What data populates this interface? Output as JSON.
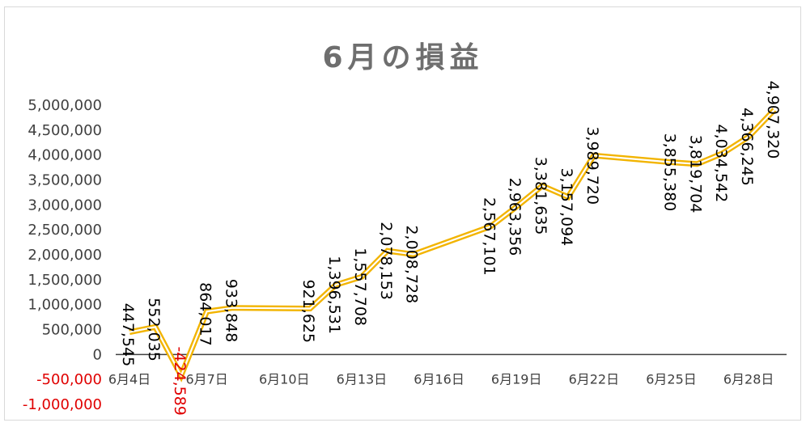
{
  "chart_data": {
    "type": "line",
    "title": "6月の損益",
    "xlabel": "",
    "ylabel": "",
    "x": [
      "6月4日",
      "6月5日",
      "6月6日",
      "6月7日",
      "6月8日",
      "6月11日",
      "6月12日",
      "6月13日",
      "6月14日",
      "6月15日",
      "6月18日",
      "6月19日",
      "6月20日",
      "6月21日",
      "6月22日",
      "6月25日",
      "6月26日",
      "6月27日",
      "6月28日",
      "6月29日"
    ],
    "series": [
      {
        "values": [
          447545,
          552035,
          -424589,
          864017,
          933848,
          921625,
          1396531,
          1557708,
          2078153,
          2008728,
          2567101,
          2963356,
          3381635,
          3157094,
          3989720,
          3855380,
          3819704,
          4034542,
          4366245,
          4907320
        ],
        "labels": [
          "447,545",
          "552,035",
          "-424,589",
          "864,017",
          "933,848",
          "921,625",
          "1,396,531",
          "1,557,708",
          "2,078,153",
          "2,008,728",
          "2,567,101",
          "2,963,356",
          "3,381,635",
          "3,157,094",
          "3,989,720",
          "3,855,380",
          "3,819,704",
          "4,034,542",
          "4,366,245",
          "4,907,320"
        ]
      }
    ],
    "ylim": [
      -1000000,
      5000000
    ],
    "y_ticks": [
      "5,000,000",
      "4,500,000",
      "4,000,000",
      "3,500,000",
      "3,000,000",
      "2,500,000",
      "2,000,000",
      "1,500,000",
      "1,000,000",
      "500,000",
      "0",
      "-500,000",
      "-1,000,000"
    ],
    "x_ticks": [
      "6月4日",
      "6月7日",
      "6月10日",
      "6月13日",
      "6月16日",
      "6月19日",
      "6月22日",
      "6月25日",
      "6月28日"
    ],
    "grid": false,
    "legend": "none",
    "colors": {
      "line": "#f2b400",
      "line_inner": "#ffffff",
      "negative": "#e00000",
      "text": "#404040",
      "title": "#6e6e6e"
    }
  }
}
